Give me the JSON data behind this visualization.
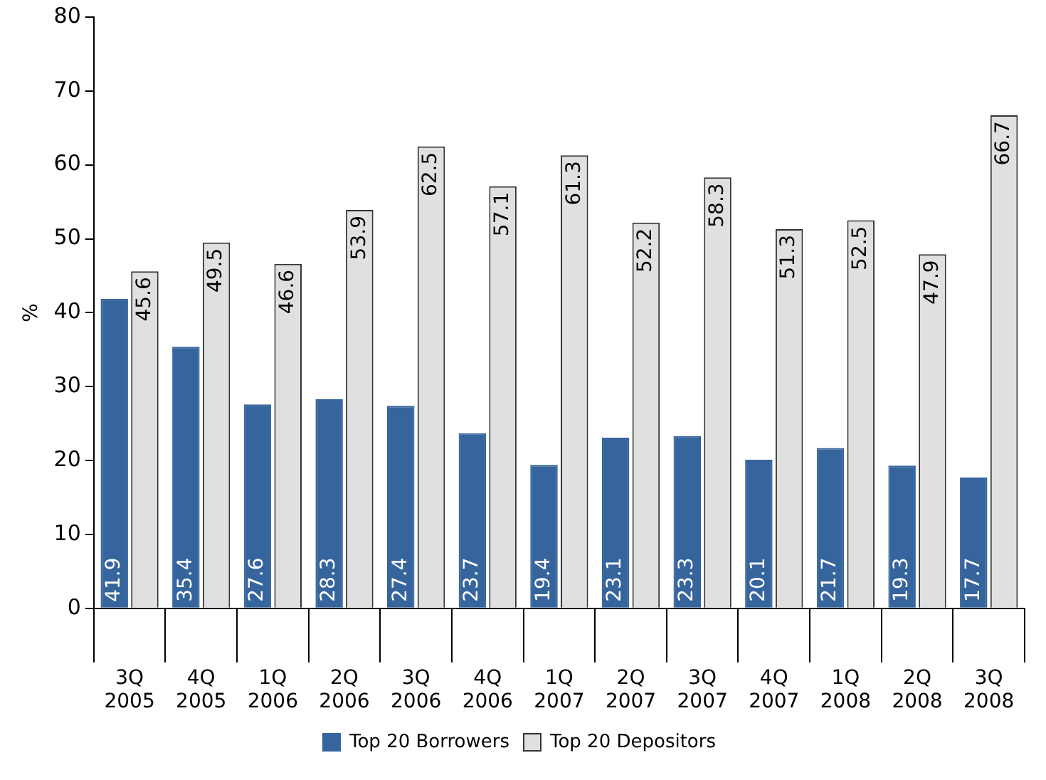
{
  "chart_data": {
    "type": "bar",
    "ylabel": "%",
    "categories": [
      "3Q 2005",
      "4Q 2005",
      "1Q 2006",
      "2Q 2006",
      "3Q 2006",
      "4Q 2006",
      "1Q 2007",
      "2Q 2007",
      "3Q 2007",
      "4Q 2007",
      "1Q 2008",
      "2Q 2008",
      "3Q 2008"
    ],
    "series": [
      {
        "name": "Top 20 Borrowers",
        "color": "#36649c",
        "values": [
          41.9,
          35.4,
          27.6,
          28.3,
          27.4,
          23.7,
          19.4,
          23.1,
          23.3,
          20.1,
          21.7,
          19.3,
          17.7
        ]
      },
      {
        "name": "Top 20 Depositors",
        "color": "#e0e0e0",
        "values": [
          45.6,
          49.5,
          46.6,
          53.9,
          62.5,
          57.1,
          61.3,
          52.2,
          58.3,
          51.3,
          52.5,
          47.9,
          66.7
        ]
      }
    ],
    "ylim": [
      0,
      80
    ],
    "yticks": [
      0,
      10,
      20,
      30,
      40,
      50,
      60,
      70,
      80
    ],
    "grid": false,
    "legend": "bottom",
    "data_labels": true
  }
}
